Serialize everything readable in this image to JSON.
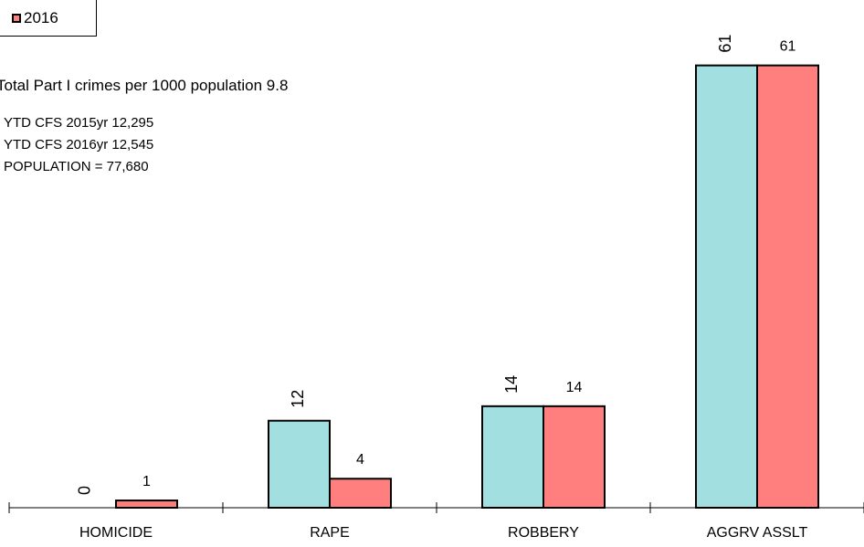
{
  "legend": {
    "label": "2016",
    "color": "#FF7F7F"
  },
  "stats": {
    "total_line": "Total Part I crimes per 1000 population 9.8",
    "lines": [
      "YTD CFS 2015yr  12,295",
      "YTD CFS 2016yr  12,545",
      "POPULATION = 77,680"
    ]
  },
  "chart_data": {
    "type": "bar",
    "categories": [
      "HOMICIDE",
      "RAPE",
      "ROBBERY",
      "AGGRV ASSLT"
    ],
    "series": [
      {
        "values": [
          0,
          12,
          14,
          61
        ],
        "color": "#A1DFE0"
      },
      {
        "name": "2016",
        "values": [
          1,
          4,
          14,
          61
        ],
        "color": "#FF7F7F"
      }
    ],
    "data_labels": [
      [
        "0",
        "12",
        "14",
        "61"
      ],
      [
        "1",
        "4",
        "14",
        "61"
      ]
    ],
    "ylim": [
      0,
      67
    ],
    "grid": false,
    "legend_position": "top-left"
  }
}
